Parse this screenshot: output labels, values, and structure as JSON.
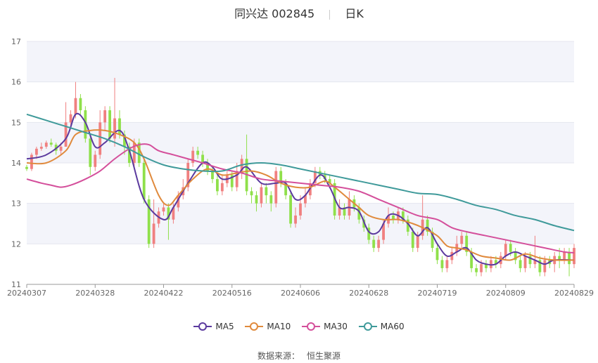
{
  "header": {
    "stock": "同兴达 002845",
    "period": "日K"
  },
  "legend": [
    {
      "name": "MA5",
      "color": "#5b3a9e"
    },
    {
      "name": "MA10",
      "color": "#e08a3c"
    },
    {
      "name": "MA30",
      "color": "#d44f9b"
    },
    {
      "name": "MA60",
      "color": "#3f9a9a"
    }
  ],
  "source": {
    "label": "数据来源：",
    "value": "恒生聚源"
  },
  "colors": {
    "up": "#f08080",
    "down": "#8fe04a",
    "band": "#f3f4fa"
  },
  "chart_data": {
    "type": "candlestick",
    "ylim": [
      11,
      17
    ],
    "yticks": [
      11,
      12,
      13,
      14,
      15,
      16,
      17
    ],
    "xtick_labels": [
      "20240307",
      "20240328",
      "20240422",
      "20240516",
      "20240606",
      "20240628",
      "20240719",
      "20240809",
      "20240829"
    ],
    "xtick_index": [
      0,
      14,
      28,
      42,
      56,
      70,
      84,
      98,
      112
    ],
    "candles": [
      [
        13.9,
        13.85,
        13.95,
        13.8
      ],
      [
        13.85,
        14.2,
        14.25,
        13.8
      ],
      [
        14.2,
        14.35,
        14.4,
        14.1
      ],
      [
        14.35,
        14.4,
        14.5,
        14.3
      ],
      [
        14.4,
        14.5,
        14.55,
        14.35
      ],
      [
        14.5,
        14.45,
        14.6,
        14.4
      ],
      [
        14.45,
        14.3,
        14.5,
        14.2
      ],
      [
        14.3,
        14.4,
        14.5,
        14.2
      ],
      [
        14.4,
        15.0,
        15.5,
        14.4
      ],
      [
        15.0,
        15.2,
        15.3,
        14.9
      ],
      [
        15.2,
        15.6,
        16.0,
        15.1
      ],
      [
        15.6,
        15.3,
        15.7,
        15.2
      ],
      [
        15.3,
        14.6,
        15.4,
        14.5
      ],
      [
        14.6,
        13.9,
        14.7,
        13.7
      ],
      [
        13.9,
        14.2,
        14.3,
        13.8
      ],
      [
        14.2,
        15.0,
        15.3,
        14.1
      ],
      [
        15.0,
        15.3,
        15.4,
        14.8
      ],
      [
        15.3,
        14.6,
        15.4,
        14.5
      ],
      [
        14.6,
        15.1,
        16.1,
        14.4
      ],
      [
        15.1,
        14.7,
        15.3,
        14.6
      ],
      [
        14.7,
        14.4,
        14.8,
        14.2
      ],
      [
        14.4,
        14.0,
        14.5,
        13.9
      ],
      [
        14.0,
        14.5,
        14.6,
        13.9
      ],
      [
        14.5,
        14.0,
        14.6,
        13.9
      ],
      [
        14.0,
        13.1,
        14.1,
        13.0
      ],
      [
        13.1,
        12.0,
        13.2,
        11.9
      ],
      [
        12.0,
        12.5,
        13.1,
        11.9
      ],
      [
        12.5,
        12.8,
        12.9,
        12.4
      ],
      [
        12.8,
        12.9,
        13.0,
        12.7
      ],
      [
        12.9,
        12.6,
        13.0,
        12.1
      ],
      [
        12.6,
        12.9,
        13.0,
        12.5
      ],
      [
        12.9,
        13.2,
        13.3,
        12.8
      ],
      [
        13.2,
        13.4,
        13.6,
        13.1
      ],
      [
        13.4,
        14.0,
        14.1,
        13.3
      ],
      [
        14.0,
        14.3,
        14.4,
        13.9
      ],
      [
        14.3,
        14.2,
        14.4,
        14.1
      ],
      [
        14.2,
        14.0,
        14.3,
        13.9
      ],
      [
        14.0,
        13.8,
        14.1,
        13.7
      ],
      [
        13.8,
        13.6,
        13.9,
        13.5
      ],
      [
        13.6,
        13.3,
        13.7,
        13.2
      ],
      [
        13.3,
        13.5,
        13.7,
        13.2
      ],
      [
        13.5,
        13.7,
        13.8,
        13.4
      ],
      [
        13.7,
        13.4,
        13.8,
        13.3
      ],
      [
        13.4,
        13.8,
        14.0,
        13.3
      ],
      [
        13.8,
        14.1,
        14.2,
        13.6
      ],
      [
        14.1,
        13.3,
        14.7,
        13.2
      ],
      [
        13.3,
        13.2,
        13.4,
        13.0
      ],
      [
        13.2,
        13.0,
        13.3,
        12.8
      ],
      [
        13.0,
        13.4,
        13.5,
        12.9
      ],
      [
        13.4,
        13.2,
        13.5,
        13.0
      ],
      [
        13.2,
        13.0,
        13.3,
        12.8
      ],
      [
        13.0,
        13.8,
        13.9,
        12.9
      ],
      [
        13.8,
        13.5,
        13.9,
        13.4
      ],
      [
        13.5,
        13.2,
        13.6,
        13.1
      ],
      [
        13.2,
        12.5,
        13.3,
        12.4
      ],
      [
        12.5,
        12.7,
        12.9,
        12.4
      ],
      [
        12.7,
        13.0,
        13.2,
        12.6
      ],
      [
        13.0,
        13.2,
        13.4,
        12.9
      ],
      [
        13.2,
        13.5,
        13.6,
        13.1
      ],
      [
        13.5,
        13.8,
        13.9,
        13.4
      ],
      [
        13.8,
        13.7,
        13.9,
        13.6
      ],
      [
        13.7,
        13.6,
        13.8,
        13.5
      ],
      [
        13.6,
        13.5,
        13.7,
        13.4
      ],
      [
        13.5,
        12.7,
        13.6,
        12.6
      ],
      [
        12.7,
        12.9,
        13.1,
        12.6
      ],
      [
        12.9,
        12.7,
        13.0,
        12.6
      ],
      [
        12.7,
        13.1,
        13.3,
        12.6
      ],
      [
        13.1,
        12.9,
        13.2,
        12.8
      ],
      [
        12.9,
        12.6,
        13.0,
        12.5
      ],
      [
        12.6,
        12.4,
        12.7,
        12.3
      ],
      [
        12.4,
        12.1,
        12.5,
        12.0
      ],
      [
        12.1,
        11.9,
        12.2,
        11.8
      ],
      [
        11.9,
        12.1,
        12.2,
        11.8
      ],
      [
        12.1,
        12.5,
        12.6,
        12.0
      ],
      [
        12.5,
        12.7,
        12.9,
        12.4
      ],
      [
        12.7,
        12.6,
        12.8,
        12.5
      ],
      [
        12.6,
        12.8,
        12.9,
        12.5
      ],
      [
        12.8,
        12.6,
        12.9,
        12.5
      ],
      [
        12.6,
        12.3,
        12.7,
        12.2
      ],
      [
        12.3,
        11.9,
        12.4,
        11.8
      ],
      [
        11.9,
        12.2,
        12.3,
        11.8
      ],
      [
        12.2,
        12.6,
        13.2,
        12.1
      ],
      [
        12.6,
        12.3,
        12.7,
        12.2
      ],
      [
        12.3,
        11.9,
        12.4,
        11.8
      ],
      [
        11.9,
        11.6,
        12.0,
        11.5
      ],
      [
        11.6,
        11.4,
        11.7,
        11.3
      ],
      [
        11.4,
        11.6,
        11.7,
        11.3
      ],
      [
        11.6,
        11.8,
        11.9,
        11.5
      ],
      [
        11.8,
        12.0,
        12.2,
        11.7
      ],
      [
        12.0,
        12.2,
        12.3,
        11.9
      ],
      [
        12.2,
        11.8,
        12.3,
        11.7
      ],
      [
        11.8,
        11.4,
        11.9,
        11.3
      ],
      [
        11.4,
        11.3,
        11.5,
        11.2
      ],
      [
        11.3,
        11.5,
        11.6,
        11.2
      ],
      [
        11.5,
        11.4,
        11.6,
        11.3
      ],
      [
        11.4,
        11.6,
        11.7,
        11.3
      ],
      [
        11.6,
        11.5,
        11.7,
        11.4
      ],
      [
        11.5,
        11.7,
        11.8,
        11.4
      ],
      [
        11.7,
        12.0,
        12.1,
        11.6
      ],
      [
        12.0,
        11.8,
        12.1,
        11.7
      ],
      [
        11.8,
        11.6,
        11.9,
        11.5
      ],
      [
        11.6,
        11.4,
        11.7,
        11.3
      ],
      [
        11.4,
        11.7,
        11.8,
        11.3
      ],
      [
        11.7,
        11.5,
        11.8,
        11.4
      ],
      [
        11.5,
        11.6,
        12.2,
        11.4
      ],
      [
        11.6,
        11.3,
        11.7,
        11.2
      ],
      [
        11.3,
        11.6,
        11.7,
        11.2
      ],
      [
        11.6,
        11.5,
        11.7,
        11.4
      ],
      [
        11.5,
        11.7,
        11.8,
        11.3
      ],
      [
        11.7,
        11.6,
        11.9,
        11.4
      ],
      [
        11.6,
        11.8,
        11.9,
        11.5
      ],
      [
        11.8,
        11.5,
        11.9,
        11.2
      ],
      [
        11.5,
        11.9,
        12.0,
        11.4
      ]
    ],
    "ma": {
      "MA5": [
        [
          0,
          14.1
        ],
        [
          4,
          14.2
        ],
        [
          8,
          14.6
        ],
        [
          10,
          15.2
        ],
        [
          12,
          15.0
        ],
        [
          14,
          14.4
        ],
        [
          16,
          14.5
        ],
        [
          19,
          14.8
        ],
        [
          21,
          14.3
        ],
        [
          24,
          13.1
        ],
        [
          28,
          12.6
        ],
        [
          30,
          12.9
        ],
        [
          33,
          13.5
        ],
        [
          36,
          14.0
        ],
        [
          38,
          13.9
        ],
        [
          40,
          13.6
        ],
        [
          43,
          13.7
        ],
        [
          45,
          13.9
        ],
        [
          48,
          13.5
        ],
        [
          51,
          13.5
        ],
        [
          53,
          13.5
        ],
        [
          55,
          13.1
        ],
        [
          57,
          13.2
        ],
        [
          60,
          13.7
        ],
        [
          62,
          13.4
        ],
        [
          64,
          12.9
        ],
        [
          66,
          12.9
        ],
        [
          68,
          12.8
        ],
        [
          70,
          12.3
        ],
        [
          72,
          12.3
        ],
        [
          74,
          12.7
        ],
        [
          76,
          12.7
        ],
        [
          78,
          12.5
        ],
        [
          80,
          12.2
        ],
        [
          82,
          12.4
        ],
        [
          84,
          12.0
        ],
        [
          86,
          11.7
        ],
        [
          88,
          11.8
        ],
        [
          90,
          11.9
        ],
        [
          92,
          11.6
        ],
        [
          94,
          11.5
        ],
        [
          96,
          11.5
        ],
        [
          98,
          11.7
        ],
        [
          100,
          11.8
        ],
        [
          102,
          11.7
        ],
        [
          104,
          11.6
        ],
        [
          106,
          11.5
        ],
        [
          108,
          11.6
        ],
        [
          112,
          11.6
        ]
      ],
      "MA10": [
        [
          0,
          14.0
        ],
        [
          4,
          14.0
        ],
        [
          8,
          14.3
        ],
        [
          10,
          14.7
        ],
        [
          13,
          14.8
        ],
        [
          16,
          14.8
        ],
        [
          19,
          14.7
        ],
        [
          22,
          14.5
        ],
        [
          24,
          14.1
        ],
        [
          27,
          13.2
        ],
        [
          29,
          12.95
        ],
        [
          31,
          13.2
        ],
        [
          34,
          13.6
        ],
        [
          37,
          13.85
        ],
        [
          40,
          13.7
        ],
        [
          43,
          13.75
        ],
        [
          46,
          13.8
        ],
        [
          49,
          13.7
        ],
        [
          52,
          13.5
        ],
        [
          55,
          13.4
        ],
        [
          58,
          13.4
        ],
        [
          61,
          13.55
        ],
        [
          63,
          13.4
        ],
        [
          66,
          13.1
        ],
        [
          68,
          12.9
        ],
        [
          70,
          12.7
        ],
        [
          73,
          12.6
        ],
        [
          76,
          12.6
        ],
        [
          79,
          12.5
        ],
        [
          81,
          12.4
        ],
        [
          84,
          12.2
        ],
        [
          86,
          11.95
        ],
        [
          88,
          11.9
        ],
        [
          90,
          11.85
        ],
        [
          93,
          11.7
        ],
        [
          96,
          11.65
        ],
        [
          99,
          11.6
        ],
        [
          102,
          11.75
        ],
        [
          105,
          11.65
        ],
        [
          108,
          11.6
        ],
        [
          112,
          11.6
        ]
      ],
      "MA30": [
        [
          0,
          13.6
        ],
        [
          3,
          13.5
        ],
        [
          5,
          13.45
        ],
        [
          7,
          13.4
        ],
        [
          9,
          13.45
        ],
        [
          12,
          13.6
        ],
        [
          15,
          13.8
        ],
        [
          18,
          14.1
        ],
        [
          21,
          14.35
        ],
        [
          23,
          14.45
        ],
        [
          25,
          14.45
        ],
        [
          27,
          14.3
        ],
        [
          30,
          14.2
        ],
        [
          33,
          14.1
        ],
        [
          36,
          14.0
        ],
        [
          40,
          13.85
        ],
        [
          44,
          13.75
        ],
        [
          48,
          13.6
        ],
        [
          52,
          13.55
        ],
        [
          56,
          13.5
        ],
        [
          60,
          13.45
        ],
        [
          64,
          13.4
        ],
        [
          68,
          13.3
        ],
        [
          72,
          13.1
        ],
        [
          76,
          12.9
        ],
        [
          80,
          12.7
        ],
        [
          84,
          12.6
        ],
        [
          87,
          12.4
        ],
        [
          90,
          12.3
        ],
        [
          94,
          12.2
        ],
        [
          98,
          12.1
        ],
        [
          102,
          12.0
        ],
        [
          106,
          11.9
        ],
        [
          110,
          11.8
        ],
        [
          112,
          11.78
        ]
      ],
      "MA60": [
        [
          0,
          15.2
        ],
        [
          4,
          15.05
        ],
        [
          8,
          14.9
        ],
        [
          12,
          14.75
        ],
        [
          16,
          14.6
        ],
        [
          20,
          14.4
        ],
        [
          24,
          14.15
        ],
        [
          28,
          13.95
        ],
        [
          32,
          13.85
        ],
        [
          36,
          13.8
        ],
        [
          40,
          13.8
        ],
        [
          44,
          13.95
        ],
        [
          48,
          14.0
        ],
        [
          52,
          13.95
        ],
        [
          56,
          13.85
        ],
        [
          60,
          13.75
        ],
        [
          64,
          13.65
        ],
        [
          68,
          13.55
        ],
        [
          72,
          13.45
        ],
        [
          76,
          13.35
        ],
        [
          80,
          13.25
        ],
        [
          84,
          13.22
        ],
        [
          88,
          13.1
        ],
        [
          92,
          12.95
        ],
        [
          96,
          12.85
        ],
        [
          100,
          12.7
        ],
        [
          104,
          12.6
        ],
        [
          108,
          12.45
        ],
        [
          112,
          12.33
        ]
      ]
    }
  }
}
